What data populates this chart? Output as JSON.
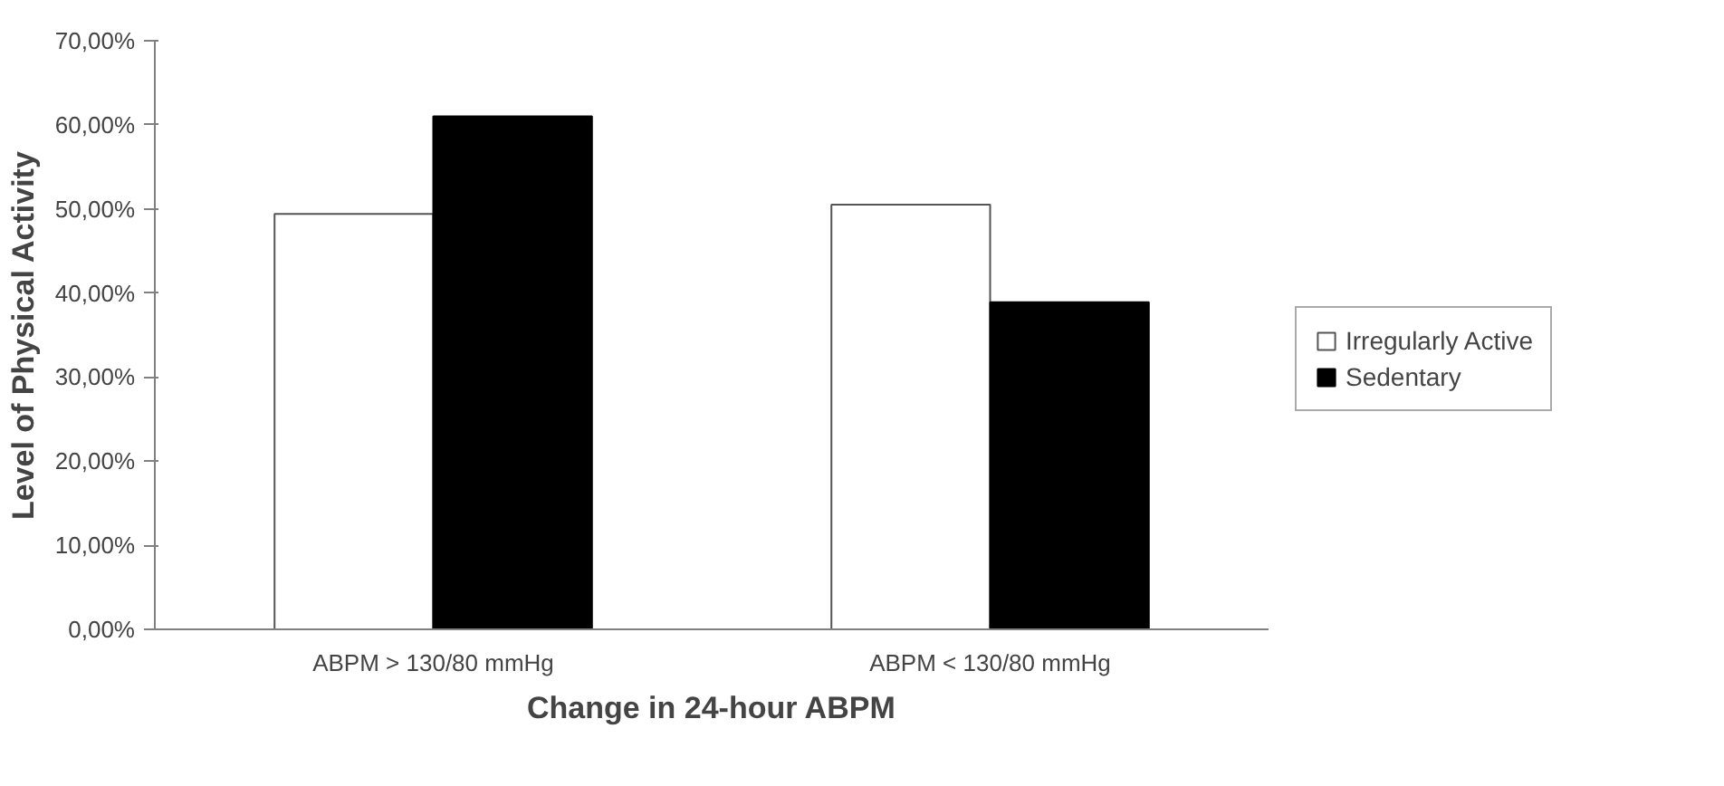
{
  "chart_data": {
    "type": "bar",
    "xlabel": "Change in 24-hour ABPM",
    "ylabel": "Level of Physical Activity",
    "categories": [
      "ABPM > 130/80 mmHg",
      "ABPM < 130/80 mmHg"
    ],
    "series": [
      {
        "name": "Irregularly Active",
        "color": "#ffffff",
        "values": [
          49.4,
          50.5
        ]
      },
      {
        "name": "Sedentary",
        "color": "#000000",
        "values": [
          61.0,
          38.9
        ]
      }
    ],
    "ylim": [
      0,
      70
    ],
    "yticks": [
      {
        "value": 0,
        "label": "0,00%"
      },
      {
        "value": 10,
        "label": "10,00%"
      },
      {
        "value": 20,
        "label": "20,00%"
      },
      {
        "value": 30,
        "label": "30,00%"
      },
      {
        "value": 40,
        "label": "40,00%"
      },
      {
        "value": 50,
        "label": "50,00%"
      },
      {
        "value": 60,
        "label": "60,00%"
      },
      {
        "value": 70,
        "label": "70,00%"
      }
    ],
    "grid": false,
    "legend": "right"
  }
}
